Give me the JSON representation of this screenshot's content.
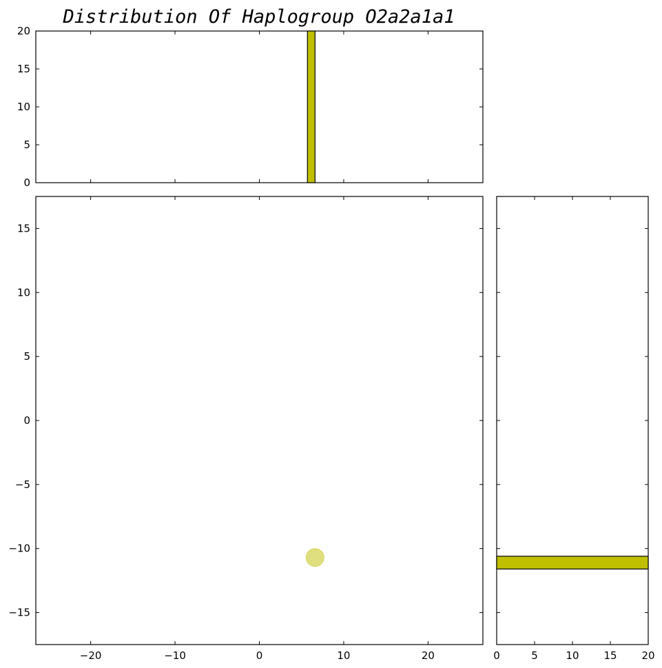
{
  "chart_data": {
    "type": "scatter",
    "title": "Distribution Of Haplogroup O2a2a1a1",
    "xlabel": "",
    "ylabel": "",
    "color": "#bfbf00",
    "marker_alpha": 0.5,
    "grid": false,
    "points": [
      {
        "x": 6.6,
        "y": -10.7
      }
    ],
    "scatter_xlim": [
      -26.5,
      26.5
    ],
    "scatter_ylim": [
      -17.5,
      17.5
    ],
    "scatter_xticks": [
      -20,
      -10,
      0,
      10,
      20
    ],
    "scatter_yticks": [
      -15,
      -10,
      -5,
      0,
      5,
      10,
      15
    ],
    "top_histogram": {
      "type": "bar",
      "orientation": "vertical",
      "bins": [
        {
          "start": 5.7,
          "end": 6.6,
          "count": 20
        }
      ],
      "ylim": [
        0,
        20
      ],
      "yticks": [
        0,
        5,
        10,
        15,
        20
      ]
    },
    "right_histogram": {
      "type": "bar",
      "orientation": "horizontal",
      "bins": [
        {
          "start": -11.6,
          "end": -10.6,
          "count": 20
        }
      ],
      "xlim": [
        0,
        20
      ],
      "xticks": [
        0,
        5,
        10,
        15,
        20
      ]
    }
  }
}
